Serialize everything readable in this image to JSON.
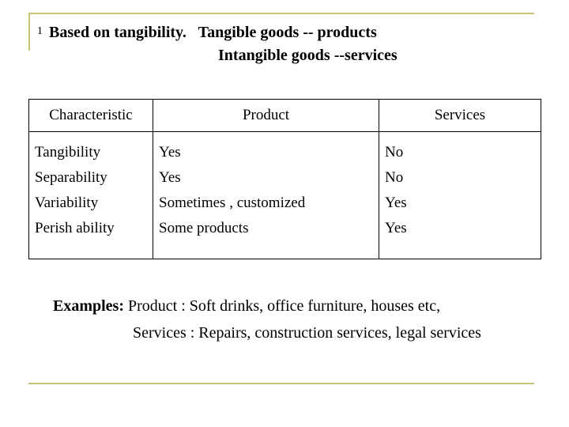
{
  "heading": {
    "number": "1",
    "line1": "Based on tangibility.   Tangible goods -- products",
    "line2": "Intangible goods --services"
  },
  "table": {
    "headers": [
      "Characteristic",
      "Product",
      "Services"
    ],
    "characteristic": [
      "Tangibility",
      "Separability",
      "Variability",
      "Perish ability"
    ],
    "product": [
      "Yes",
      "Yes",
      "Sometimes , customized",
      "Some products"
    ],
    "services": [
      "No",
      "No",
      "Yes",
      "Yes"
    ]
  },
  "examples": {
    "label": "Examples:",
    "product_text": " Product : Soft drinks, office furniture, houses etc,",
    "services_text": "Services : Repairs, construction services, legal services"
  },
  "colors": {
    "rule": "#c9c27a"
  }
}
